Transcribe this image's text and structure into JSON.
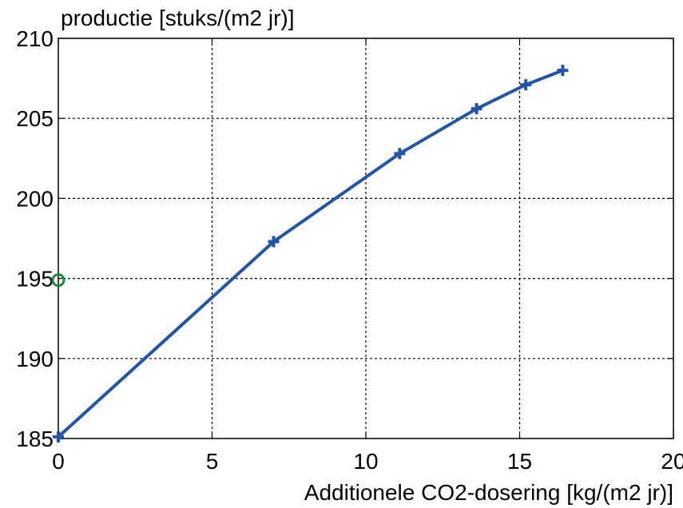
{
  "chart_data": {
    "type": "line",
    "title": "",
    "ylabel": "productie [stuks/(m2 jr)]",
    "xlabel": "Additionele CO2-dosering [kg/(m2 jr)]",
    "xlim": [
      0,
      20
    ],
    "ylim": [
      185,
      210
    ],
    "xticks": [
      "0",
      "5",
      "10",
      "15",
      "20"
    ],
    "yticks": [
      "185",
      "190",
      "195",
      "200",
      "205",
      "210"
    ],
    "grid": true,
    "series": [
      {
        "color": "#2255a4",
        "marker": "plus",
        "x": [
          0,
          7.0,
          11.1,
          13.6,
          15.2,
          16.4
        ],
        "y": [
          185.1,
          197.3,
          202.8,
          205.6,
          207.1,
          208.0
        ]
      }
    ],
    "reference_point": {
      "x": 0,
      "y": 194.9,
      "color": "#1f8a3c",
      "marker": "circle"
    }
  }
}
